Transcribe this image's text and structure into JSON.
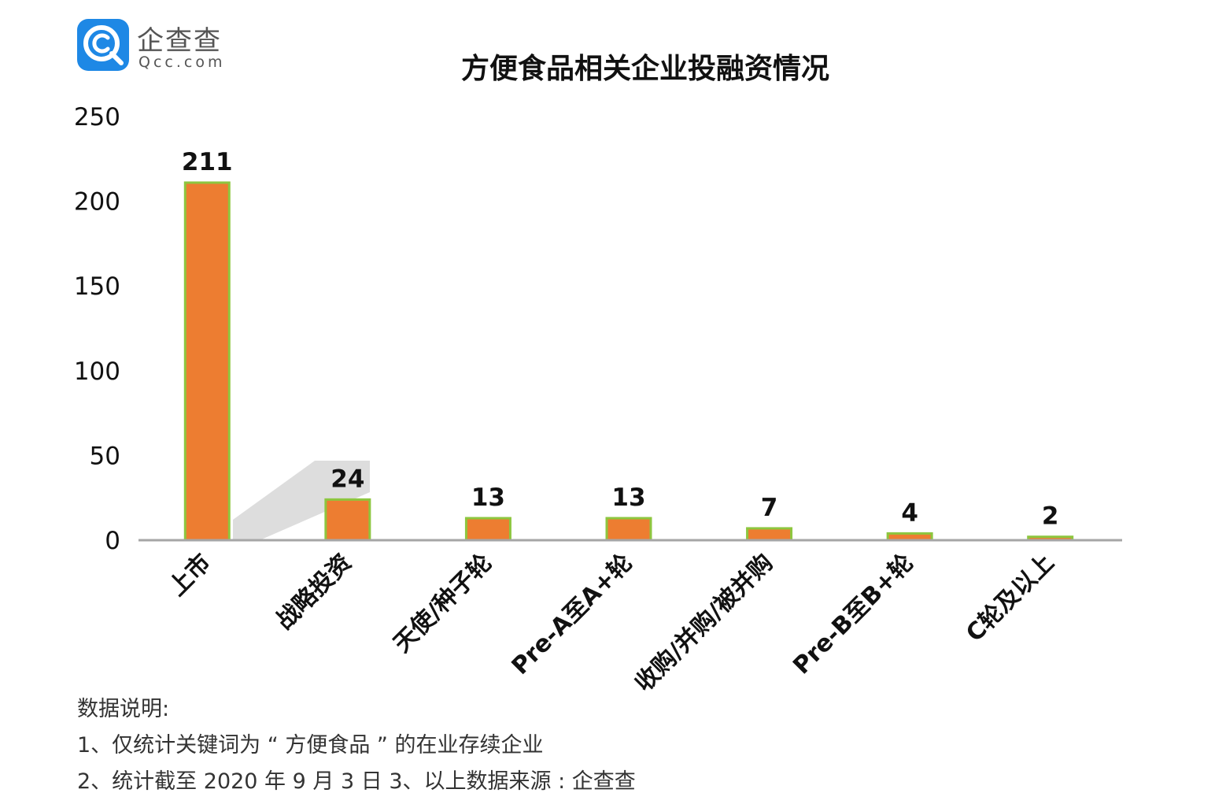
{
  "logo": {
    "name": "企查查",
    "domain": "Qcc.com",
    "badge_color": "#1e88e5"
  },
  "chart_data": {
    "type": "bar",
    "title": "方便食品相关企业投融资情况",
    "categories": [
      "上市",
      "战略投资",
      "天使/种子轮",
      "Pre-A至A+轮",
      "收购/并购/被并购",
      "Pre-B至B+轮",
      "C轮及以上"
    ],
    "values": [
      211,
      24,
      13,
      13,
      7,
      4,
      2
    ],
    "ylim": [
      0,
      250
    ],
    "yticks": [
      0,
      50,
      100,
      150,
      200,
      250
    ],
    "xlabel": "",
    "ylabel": "",
    "grid": false,
    "bar_color": "#ed7d31",
    "bar_border_color": "#8dc63f",
    "axis_color": "#a6a6a6"
  },
  "notes": {
    "heading": "数据说明:",
    "line1": "1、仅统计关键词为 “ 方便食品 ” 的在业存续企业",
    "line2": "2、统计截至 2020 年 9 月 3 日    3、以上数据来源 : 企查查"
  }
}
